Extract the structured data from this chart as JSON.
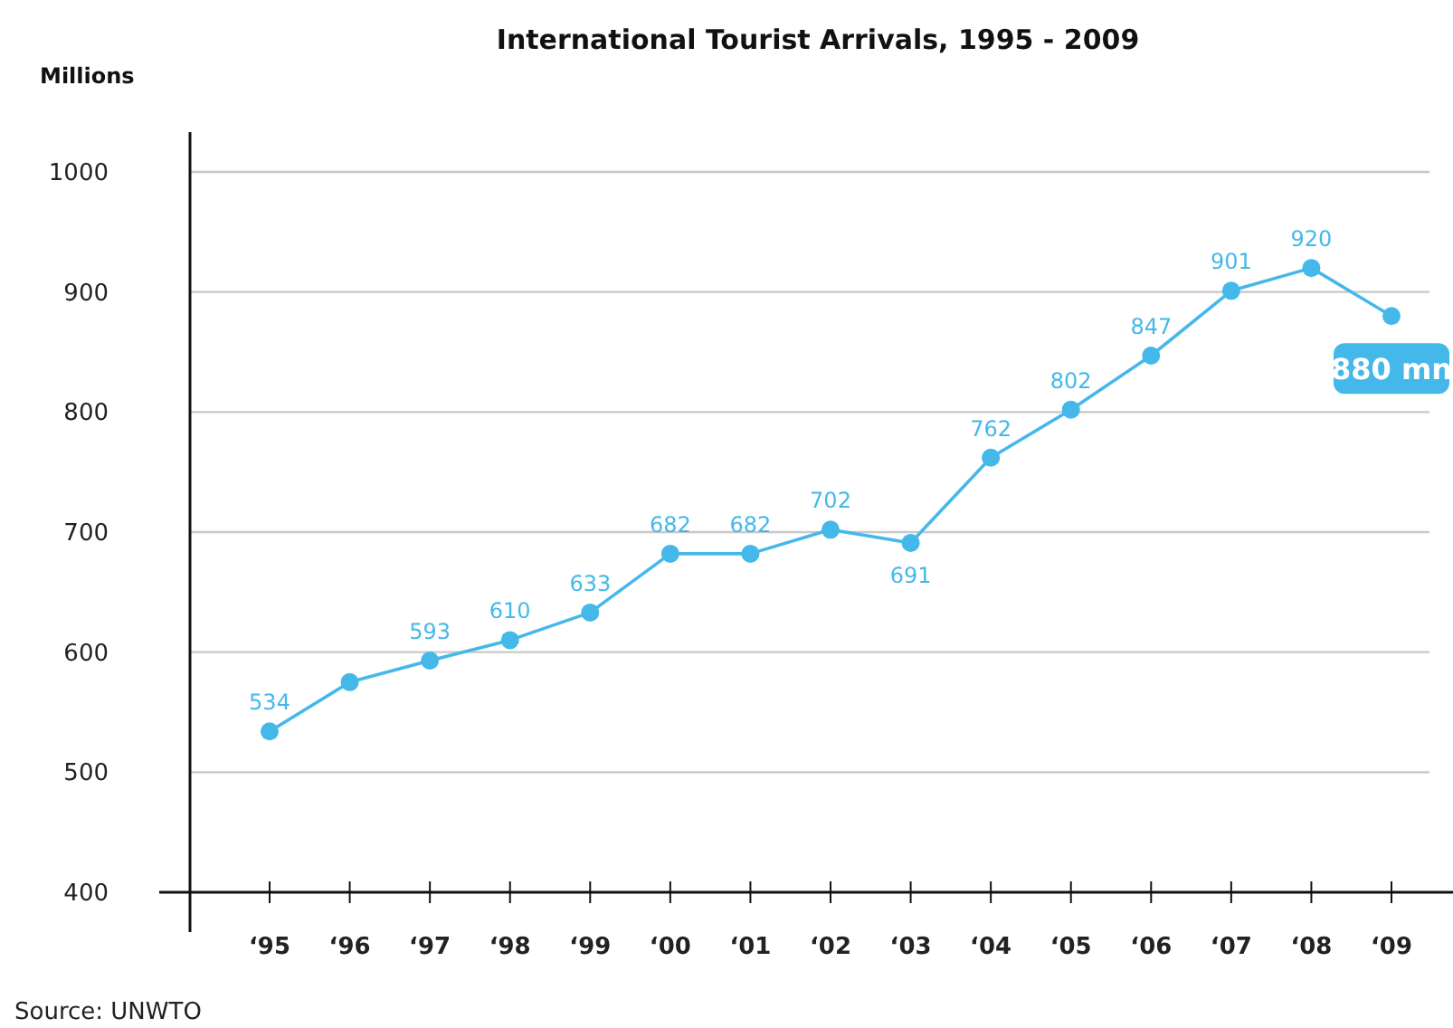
{
  "chart_data": {
    "type": "line",
    "title": "International Tourist Arrivals, 1995 - 2009",
    "ylabel": "Millions",
    "categories": [
      "‘95",
      "‘96",
      "‘97",
      "‘98",
      "‘99",
      "‘00",
      "‘01",
      "‘02",
      "‘03",
      "‘04",
      "‘05",
      "‘06",
      "‘07",
      "‘08",
      "‘09"
    ],
    "series": [
      {
        "color": "#45b8ea",
        "values": [
          534,
          575,
          593,
          610,
          633,
          682,
          682,
          702,
          691,
          762,
          802,
          847,
          901,
          920,
          880
        ],
        "value_labels": [
          "534",
          null,
          "593",
          "610",
          "633",
          "682",
          "682",
          "702",
          "691",
          "762",
          "802",
          "847",
          "901",
          "920",
          "880 mn"
        ]
      }
    ],
    "ylim": [
      400,
      1000
    ],
    "yticks": [
      400,
      500,
      600,
      700,
      800,
      900,
      1000
    ],
    "grid": "y",
    "marker": "circle",
    "line_style": "solid",
    "annotations": [
      "Source: UNWTO"
    ]
  }
}
